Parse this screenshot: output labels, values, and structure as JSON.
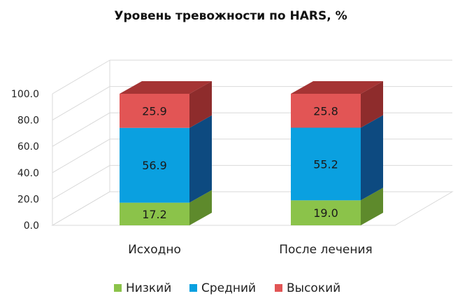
{
  "chart_data": {
    "type": "bar",
    "stacked": true,
    "three_d": true,
    "title": "Уровень тревожности по HARS, %",
    "categories": [
      "Исходно",
      "После лечения"
    ],
    "series": [
      {
        "name": "Низкий",
        "values": [
          17.2,
          19.0
        ],
        "color": "#8bc34a",
        "side_color": "#5e8a2c",
        "top_color": "#7aad3c"
      },
      {
        "name": "Средний",
        "values": [
          56.9,
          55.2
        ],
        "color": "#0aa0e0",
        "side_color": "#0d4a80",
        "top_color": "#0b6fae"
      },
      {
        "name": "Высокий",
        "values": [
          25.9,
          25.8
        ],
        "color": "#e25555",
        "side_color": "#8e2c2c",
        "top_color": "#a53434"
      }
    ],
    "ylim": [
      0,
      100
    ],
    "yticks": [
      "0.0",
      "20.0",
      "40.0",
      "60.0",
      "80.0",
      "100.0"
    ],
    "grid": true,
    "legend_position": "bottom"
  }
}
